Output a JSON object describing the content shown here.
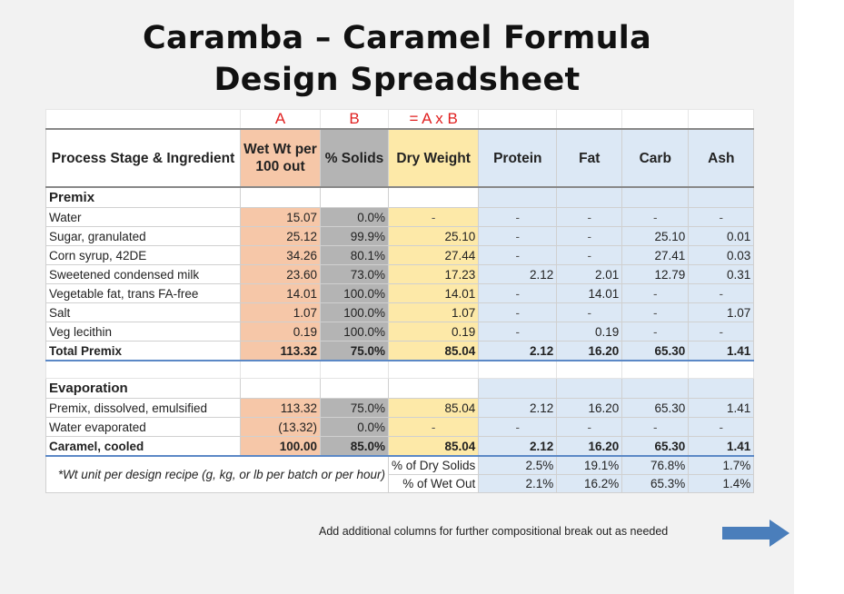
{
  "title": {
    "line1": "Caramba – Caramel Formula",
    "line2": "Design Spreadsheet"
  },
  "col_letters": {
    "a": "A",
    "b": "B",
    "c": "= A x B"
  },
  "headers": {
    "stage": "Process Stage & Ingredient",
    "wetwt": "Wet Wt per 100 out",
    "solids": "% Solids",
    "dry": "Dry Weight",
    "protein": "Protein",
    "fat": "Fat",
    "carb": "Carb",
    "ash": "Ash"
  },
  "premix": {
    "label": "Premix",
    "rows": [
      {
        "name": "Water",
        "wet": "15.07",
        "solids": "0.0%",
        "dry": "-",
        "protein": "-",
        "fat": "-",
        "carb": "-",
        "ash": "-"
      },
      {
        "name": "Sugar, granulated",
        "wet": "25.12",
        "solids": "99.9%",
        "dry": "25.10",
        "protein": "-",
        "fat": "-",
        "carb": "25.10",
        "ash": "0.01"
      },
      {
        "name": "Corn syrup, 42DE",
        "wet": "34.26",
        "solids": "80.1%",
        "dry": "27.44",
        "protein": "-",
        "fat": "-",
        "carb": "27.41",
        "ash": "0.03"
      },
      {
        "name": "Sweetened condensed milk",
        "wet": "23.60",
        "solids": "73.0%",
        "dry": "17.23",
        "protein": "2.12",
        "fat": "2.01",
        "carb": "12.79",
        "ash": "0.31"
      },
      {
        "name": "Vegetable fat, trans FA-free",
        "wet": "14.01",
        "solids": "100.0%",
        "dry": "14.01",
        "protein": "-",
        "fat": "14.01",
        "carb": "-",
        "ash": "-"
      },
      {
        "name": "Salt",
        "wet": "1.07",
        "solids": "100.0%",
        "dry": "1.07",
        "protein": "-",
        "fat": "-",
        "carb": "-",
        "ash": "1.07"
      },
      {
        "name": "Veg lecithin",
        "wet": "0.19",
        "solids": "100.0%",
        "dry": "0.19",
        "protein": "-",
        "fat": "0.19",
        "carb": "-",
        "ash": "-"
      }
    ],
    "total": {
      "name": "Total Premix",
      "wet": "113.32",
      "solids": "75.0%",
      "dry": "85.04",
      "protein": "2.12",
      "fat": "16.20",
      "carb": "65.30",
      "ash": "1.41"
    }
  },
  "evaporation": {
    "label": "Evaporation",
    "rows": [
      {
        "name": "Premix, dissolved, emulsified",
        "wet": "113.32",
        "solids": "75.0%",
        "dry": "85.04",
        "protein": "2.12",
        "fat": "16.20",
        "carb": "65.30",
        "ash": "1.41"
      },
      {
        "name": "Water evaporated",
        "wet": "(13.32)",
        "solids": "0.0%",
        "dry": "-",
        "protein": "-",
        "fat": "-",
        "carb": "-",
        "ash": "-"
      }
    ],
    "total": {
      "name": "Caramel, cooled",
      "wet": "100.00",
      "solids": "85.0%",
      "dry": "85.04",
      "protein": "2.12",
      "fat": "16.20",
      "carb": "65.30",
      "ash": "1.41"
    }
  },
  "footer": {
    "note": "*Wt unit per design recipe (g, kg, or lb per batch or per hour)",
    "dry_label": "% of Dry Solids",
    "wet_label": "% of Wet Out",
    "dry": {
      "protein": "2.5%",
      "fat": "19.1%",
      "carb": "76.8%",
      "ash": "1.7%"
    },
    "wet": {
      "protein": "2.1%",
      "fat": "16.2%",
      "carb": "65.3%",
      "ash": "1.4%"
    }
  },
  "add_note": "Add additional columns for further compositional break out as needed",
  "colors": {
    "col_a": "#f6c7a8",
    "col_b": "#b4b4b4",
    "col_c": "#fde9a8",
    "nutrients": "#dce8f5",
    "letters": "#e02020",
    "arrow": "#4a7ebb"
  }
}
